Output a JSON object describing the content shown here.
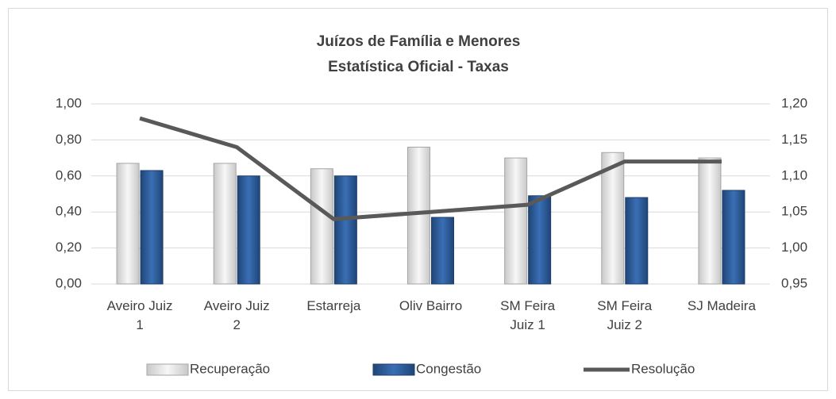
{
  "chart_data": {
    "type": "bar",
    "title": "Juízos de Família e Menores",
    "subtitle": "Estatística Oficial - Taxas",
    "categories": [
      "Aveiro Juiz 1",
      "Aveiro Juiz 2",
      "Estarreja",
      "Oliv Bairro",
      "SM Feira Juiz 1",
      "SM Feira Juiz 2",
      "SJ Madeira"
    ],
    "series": [
      {
        "name": "Recuperação",
        "color": "#e3e3e3",
        "values": [
          0.67,
          0.67,
          0.64,
          0.76,
          0.7,
          0.73,
          0.7
        ]
      },
      {
        "name": "Congestão",
        "color": "#2f5f9e",
        "values": [
          0.63,
          0.6,
          0.6,
          0.37,
          0.49,
          0.48,
          0.52
        ]
      },
      {
        "name": "Resolução",
        "color": "#595959",
        "type": "line",
        "axis": "y2",
        "values": [
          1.18,
          1.14,
          1.04,
          1.05,
          1.06,
          1.12,
          1.12
        ]
      }
    ],
    "ylim": [
      0,
      1
    ],
    "yticks": [
      {
        "value": 0,
        "label": "0,00"
      },
      {
        "value": 0.2,
        "label": "0,20"
      },
      {
        "value": 0.4,
        "label": "0,40"
      },
      {
        "value": 0.6,
        "label": "0,60"
      },
      {
        "value": 0.8,
        "label": "0,80"
      },
      {
        "value": 1,
        "label": "1,00"
      }
    ],
    "y2lim": [
      0.95,
      1.2
    ],
    "y2ticks": [
      {
        "value": 0.95,
        "label": "0,95"
      },
      {
        "value": 1.0,
        "label": "1,00"
      },
      {
        "value": 1.05,
        "label": "1,05"
      },
      {
        "value": 1.1,
        "label": "1,10"
      },
      {
        "value": 1.15,
        "label": "1,15"
      },
      {
        "value": 1.2,
        "label": "1,20"
      }
    ],
    "grid": true,
    "legend": "bottom"
  }
}
